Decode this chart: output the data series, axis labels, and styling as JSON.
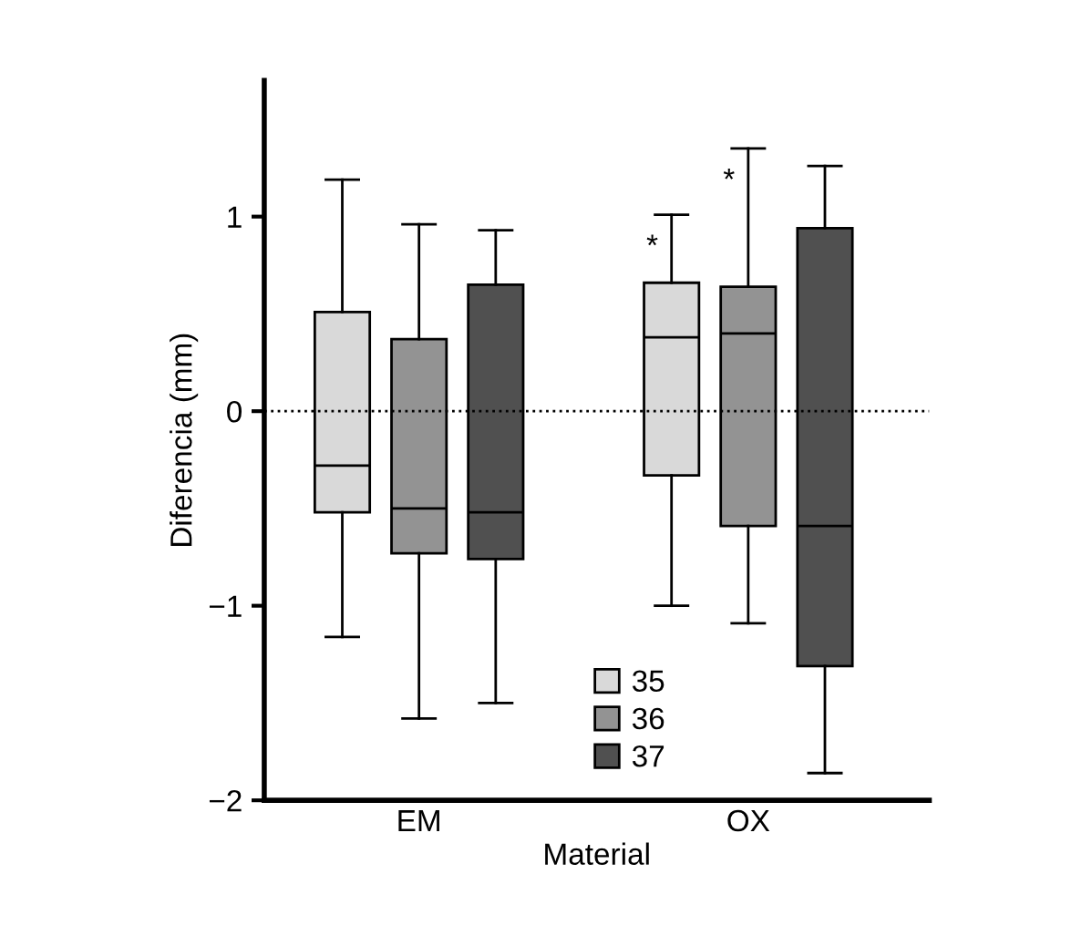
{
  "chart_data": {
    "type": "box",
    "xlabel": "Material",
    "ylabel": "Diferencia (mm)",
    "categories": [
      "EM",
      "OX"
    ],
    "ylim": [
      -2,
      1.7
    ],
    "yticks": [
      -2,
      -1,
      0,
      1
    ],
    "grid": false,
    "legend": "bottom",
    "series": [
      {
        "name": "35",
        "color": "#d9d9d9",
        "boxes": [
          {
            "low": -1.16,
            "q1": -0.52,
            "median": -0.28,
            "q3": 0.51,
            "high": 1.19
          },
          {
            "low": -1.0,
            "q1": -0.33,
            "median": 0.38,
            "q3": 0.66,
            "high": 1.01
          }
        ]
      },
      {
        "name": "36",
        "color": "#939393",
        "boxes": [
          {
            "low": -1.58,
            "q1": -0.73,
            "median": -0.5,
            "q3": 0.37,
            "high": 0.96
          },
          {
            "low": -1.09,
            "q1": -0.59,
            "median": 0.4,
            "q3": 0.64,
            "high": 1.35
          }
        ]
      },
      {
        "name": "37",
        "color": "#505050",
        "boxes": [
          {
            "low": -1.5,
            "q1": -0.76,
            "median": -0.52,
            "q3": 0.65,
            "high": 0.93
          },
          {
            "low": -1.86,
            "q1": -1.31,
            "median": -0.59,
            "q3": 0.94,
            "high": 1.26
          }
        ]
      }
    ],
    "ref_lines": [
      {
        "axis": "y",
        "value": 0,
        "line_style": "dotted"
      }
    ],
    "annotations": [
      "*",
      "*"
    ]
  }
}
